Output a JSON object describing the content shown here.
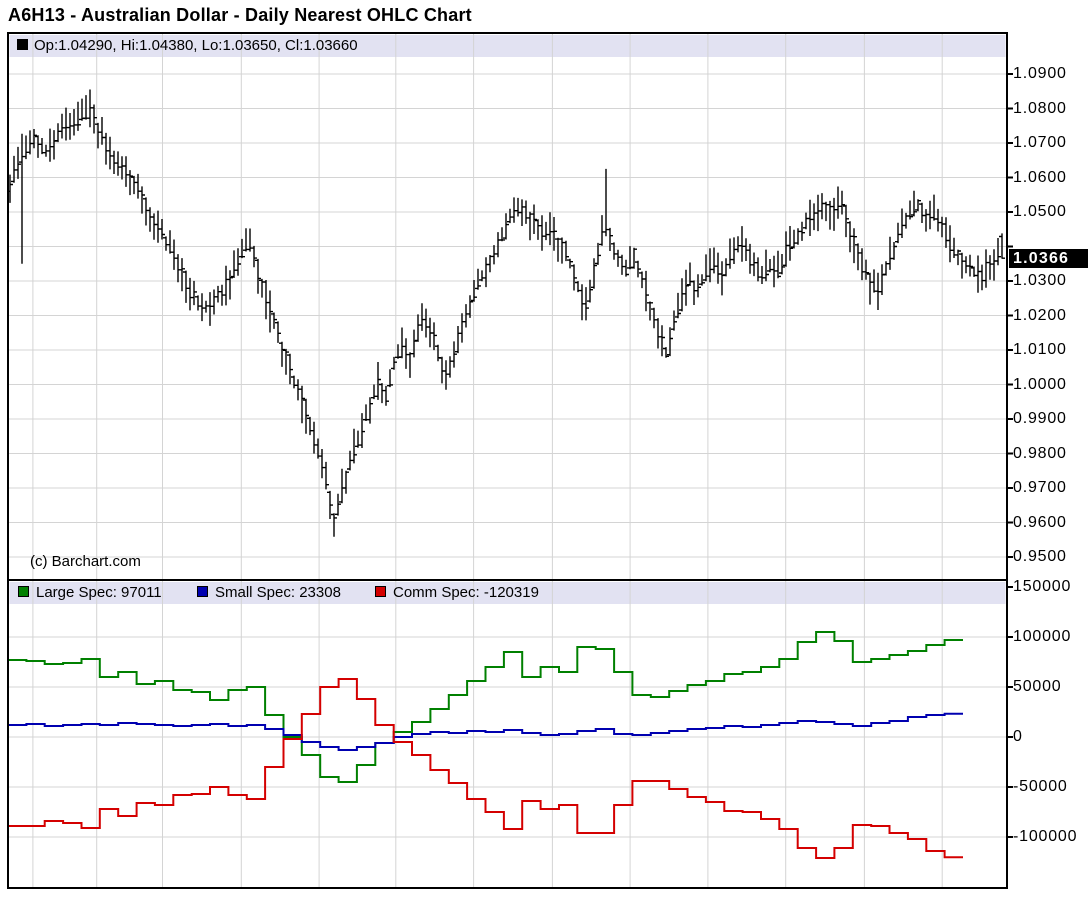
{
  "window_title": "A6H13 - Australian Dollar - Daily Nearest OHLC Chart",
  "top_panel": {
    "legend_text": "Op:1.04290, Hi:1.04380, Lo:1.03650, Cl:1.03660",
    "legend_marker_color": "#000000",
    "copyright": "(c) Barchart.com",
    "last_price": "1.0366",
    "axis_labels": [
      "1.0900",
      "1.0800",
      "1.0700",
      "1.0600",
      "1.0500",
      "1.0300",
      "1.0200",
      "1.0100",
      "1.0000",
      "0.9900",
      "0.9800",
      "0.9700",
      "0.9600",
      "0.9500"
    ]
  },
  "bottom_panel": {
    "legend_items": [
      {
        "label": "Large Spec: 97011",
        "color": "#008000"
      },
      {
        "label": "Small Spec: 23308",
        "color": "#0000B0"
      },
      {
        "label": "Comm Spec: -120319",
        "color": "#D40000"
      }
    ],
    "axis_labels": [
      "150000",
      "100000",
      "50000",
      "0",
      "-50000",
      "-100000"
    ]
  },
  "colors": {
    "grid": "#D4D4D4",
    "border": "#000000",
    "legend_bg": "#E2E2F2",
    "bar": "#000000",
    "last_price_bg": "#000000",
    "last_price_fg": "#FFFFFF"
  },
  "chart_data": {
    "type": "ohlc",
    "title": "A6H13 - Australian Dollar - Daily Nearest OHLC Chart",
    "x_gridlines_t": [
      0.025,
      0.089,
      0.155,
      0.234,
      0.312,
      0.389,
      0.467,
      0.546,
      0.624,
      0.702,
      0.78,
      0.859,
      0.937
    ],
    "panels": [
      {
        "id": "price",
        "type": "ohlc",
        "y_range": [
          0.95,
          1.09
        ],
        "y_tick": 0.01,
        "n_bars": 249,
        "last_bar": {
          "open": 1.0429,
          "high": 1.0438,
          "low": 1.0365,
          "close": 1.0366
        },
        "spikes": [
          {
            "t": 0.012,
            "low": 1.035
          },
          {
            "t": 0.08,
            "high": 1.0855
          },
          {
            "t": 0.327,
            "low": 0.956
          },
          {
            "t": 0.602,
            "high": 1.0625
          }
        ],
        "close_anchors": [
          [
            0.0,
            1.058
          ],
          [
            0.012,
            1.067
          ],
          [
            0.024,
            1.071
          ],
          [
            0.037,
            1.068
          ],
          [
            0.05,
            1.073
          ],
          [
            0.064,
            1.076
          ],
          [
            0.077,
            1.079
          ],
          [
            0.082,
            1.081
          ],
          [
            0.09,
            1.073
          ],
          [
            0.102,
            1.067
          ],
          [
            0.117,
            1.061
          ],
          [
            0.132,
            1.055
          ],
          [
            0.147,
            1.047
          ],
          [
            0.162,
            1.039
          ],
          [
            0.178,
            1.029
          ],
          [
            0.193,
            1.021
          ],
          [
            0.205,
            1.024
          ],
          [
            0.221,
            1.03
          ],
          [
            0.233,
            1.038
          ],
          [
            0.241,
            1.041
          ],
          [
            0.25,
            1.032
          ],
          [
            0.261,
            1.022
          ],
          [
            0.273,
            1.012
          ],
          [
            0.285,
            1.002
          ],
          [
            0.297,
            0.992
          ],
          [
            0.309,
            0.982
          ],
          [
            0.319,
            0.971
          ],
          [
            0.327,
            0.96
          ],
          [
            0.333,
            0.968
          ],
          [
            0.343,
            0.978
          ],
          [
            0.353,
            0.986
          ],
          [
            0.363,
            0.994
          ],
          [
            0.371,
            1.001
          ],
          [
            0.379,
            0.997
          ],
          [
            0.387,
            1.006
          ],
          [
            0.395,
            1.012
          ],
          [
            0.402,
            1.006
          ],
          [
            0.41,
            1.015
          ],
          [
            0.417,
            1.02
          ],
          [
            0.424,
            1.016
          ],
          [
            0.431,
            1.009
          ],
          [
            0.438,
            1.001
          ],
          [
            0.446,
            1.008
          ],
          [
            0.455,
            1.016
          ],
          [
            0.465,
            1.024
          ],
          [
            0.475,
            1.031
          ],
          [
            0.486,
            1.037
          ],
          [
            0.496,
            1.043
          ],
          [
            0.504,
            1.049
          ],
          [
            0.511,
            1.052
          ],
          [
            0.519,
            1.049
          ],
          [
            0.528,
            1.047
          ],
          [
            0.537,
            1.043
          ],
          [
            0.545,
            1.045
          ],
          [
            0.553,
            1.041
          ],
          [
            0.562,
            1.037
          ],
          [
            0.571,
            1.03
          ],
          [
            0.579,
            1.021
          ],
          [
            0.586,
            1.029
          ],
          [
            0.593,
            1.038
          ],
          [
            0.599,
            1.046
          ],
          [
            0.605,
            1.042
          ],
          [
            0.613,
            1.037
          ],
          [
            0.621,
            1.033
          ],
          [
            0.629,
            1.038
          ],
          [
            0.637,
            1.031
          ],
          [
            0.645,
            1.023
          ],
          [
            0.653,
            1.015
          ],
          [
            0.661,
            1.009
          ],
          [
            0.669,
            1.017
          ],
          [
            0.677,
            1.025
          ],
          [
            0.685,
            1.03
          ],
          [
            0.693,
            1.027
          ],
          [
            0.701,
            1.033
          ],
          [
            0.709,
            1.036
          ],
          [
            0.717,
            1.031
          ],
          [
            0.725,
            1.037
          ],
          [
            0.733,
            1.041
          ],
          [
            0.741,
            1.039
          ],
          [
            0.749,
            1.035
          ],
          [
            0.757,
            1.03
          ],
          [
            0.765,
            1.035
          ],
          [
            0.773,
            1.032
          ],
          [
            0.781,
            1.038
          ],
          [
            0.789,
            1.042
          ],
          [
            0.797,
            1.045
          ],
          [
            0.805,
            1.047
          ],
          [
            0.813,
            1.05
          ],
          [
            0.821,
            1.052
          ],
          [
            0.829,
            1.049
          ],
          [
            0.836,
            1.054
          ],
          [
            0.843,
            1.047
          ],
          [
            0.851,
            1.041
          ],
          [
            0.859,
            1.034
          ],
          [
            0.867,
            1.029
          ],
          [
            0.875,
            1.027
          ],
          [
            0.883,
            1.034
          ],
          [
            0.891,
            1.04
          ],
          [
            0.899,
            1.046
          ],
          [
            0.907,
            1.05
          ],
          [
            0.915,
            1.052
          ],
          [
            0.923,
            1.048
          ],
          [
            0.931,
            1.05
          ],
          [
            0.939,
            1.046
          ],
          [
            0.947,
            1.041
          ],
          [
            0.955,
            1.038
          ],
          [
            0.963,
            1.036
          ],
          [
            0.971,
            1.033
          ],
          [
            0.979,
            1.031
          ],
          [
            0.987,
            1.036
          ],
          [
            1.0,
            1.0366
          ]
        ]
      },
      {
        "id": "cot",
        "type": "step",
        "y_range": [
          -150000,
          150000
        ],
        "y_tick": 50000,
        "series": [
          {
            "name": "Large Spec",
            "color": "#008000",
            "last": 97011,
            "values": [
              77000,
              76000,
              73000,
              74000,
              78000,
              60000,
              65000,
              53000,
              56000,
              47000,
              45000,
              37000,
              47000,
              50000,
              22000,
              0,
              -18000,
              -40000,
              -45000,
              -28000,
              -6000,
              5000,
              15000,
              28000,
              42000,
              56000,
              70000,
              85000,
              60000,
              70000,
              65000,
              90000,
              88000,
              65000,
              42000,
              40000,
              46000,
              52000,
              56000,
              63000,
              65000,
              70000,
              78000,
              95000,
              105000,
              96000,
              75000,
              78000,
              82000,
              86000,
              92000,
              97011
            ]
          },
          {
            "name": "Small Spec",
            "color": "#0000B0",
            "last": 23308,
            "values": [
              12000,
              13000,
              11000,
              12000,
              13000,
              12000,
              14000,
              13000,
              12000,
              11000,
              12000,
              13000,
              11000,
              12000,
              8000,
              2000,
              -5000,
              -10000,
              -13000,
              -10000,
              -6000,
              0,
              3000,
              5000,
              4000,
              6000,
              5000,
              7000,
              4000,
              2000,
              3000,
              6000,
              8000,
              3000,
              2000,
              4000,
              6000,
              8000,
              9000,
              11000,
              10000,
              12000,
              14000,
              16000,
              15000,
              13000,
              11000,
              14000,
              16000,
              20000,
              22000,
              23308
            ]
          },
          {
            "name": "Comm Spec",
            "color": "#D40000",
            "last": -120319,
            "values": [
              -89000,
              -89000,
              -84000,
              -86000,
              -91000,
              -72000,
              -79000,
              -66000,
              -68000,
              -58000,
              -57000,
              -50000,
              -58000,
              -62000,
              -30000,
              -2000,
              23000,
              50000,
              58000,
              38000,
              12000,
              -5000,
              -18000,
              -33000,
              -46000,
              -62000,
              -75000,
              -92000,
              -64000,
              -72000,
              -68000,
              -96000,
              -96000,
              -68000,
              -44000,
              -44000,
              -52000,
              -60000,
              -65000,
              -74000,
              -75000,
              -82000,
              -92000,
              -111000,
              -121000,
              -111000,
              -88000,
              -89000,
              -96000,
              -102000,
              -114000,
              -120319
            ]
          }
        ]
      }
    ]
  }
}
